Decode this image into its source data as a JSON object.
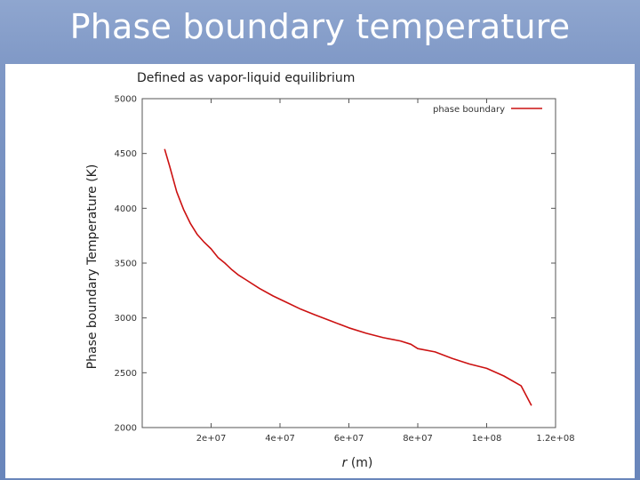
{
  "slide": {
    "title": "Phase boundary temperature"
  },
  "colors": {
    "background": "#7f98c6",
    "series": "#cc1111"
  },
  "chart_data": {
    "type": "line",
    "subtitle": "Defined as vapor-liquid equilibrium",
    "ylabel": "Phase boundary Temperature (K)",
    "xlabel_var": "r",
    "xlabel_unit": "(m)",
    "xlim": [
      0,
      120000000
    ],
    "ylim": [
      2000,
      5000
    ],
    "x_ticks": [
      {
        "value": 20000000,
        "label": "2e+07"
      },
      {
        "value": 40000000,
        "label": "4e+07"
      },
      {
        "value": 60000000,
        "label": "6e+07"
      },
      {
        "value": 80000000,
        "label": "8e+07"
      },
      {
        "value": 100000000,
        "label": "1e+08"
      },
      {
        "value": 120000000,
        "label": "1.2e+08"
      }
    ],
    "y_ticks": [
      {
        "value": 2000,
        "label": "2000"
      },
      {
        "value": 2500,
        "label": "2500"
      },
      {
        "value": 3000,
        "label": "3000"
      },
      {
        "value": 3500,
        "label": "3500"
      },
      {
        "value": 4000,
        "label": "4000"
      },
      {
        "value": 4500,
        "label": "4500"
      },
      {
        "value": 5000,
        "label": "5000"
      }
    ],
    "legend_position": "top-right",
    "grid": false,
    "series": [
      {
        "name": "phase boundary",
        "color": "#cc1111",
        "x": [
          6500000,
          8000000,
          10000000,
          12000000,
          14000000,
          16000000,
          18000000,
          20000000,
          22000000,
          24000000,
          26000000,
          28000000,
          30000000,
          34000000,
          38000000,
          42000000,
          46000000,
          50000000,
          55000000,
          60000000,
          65000000,
          70000000,
          75000000,
          78000000,
          80000000,
          85000000,
          90000000,
          95000000,
          100000000,
          105000000,
          110000000,
          113000000
        ],
        "y": [
          4540,
          4380,
          4150,
          3990,
          3860,
          3760,
          3690,
          3630,
          3550,
          3500,
          3440,
          3390,
          3350,
          3270,
          3200,
          3140,
          3080,
          3030,
          2970,
          2910,
          2860,
          2820,
          2790,
          2760,
          2720,
          2690,
          2630,
          2580,
          2540,
          2470,
          2380,
          2200
        ]
      }
    ]
  }
}
